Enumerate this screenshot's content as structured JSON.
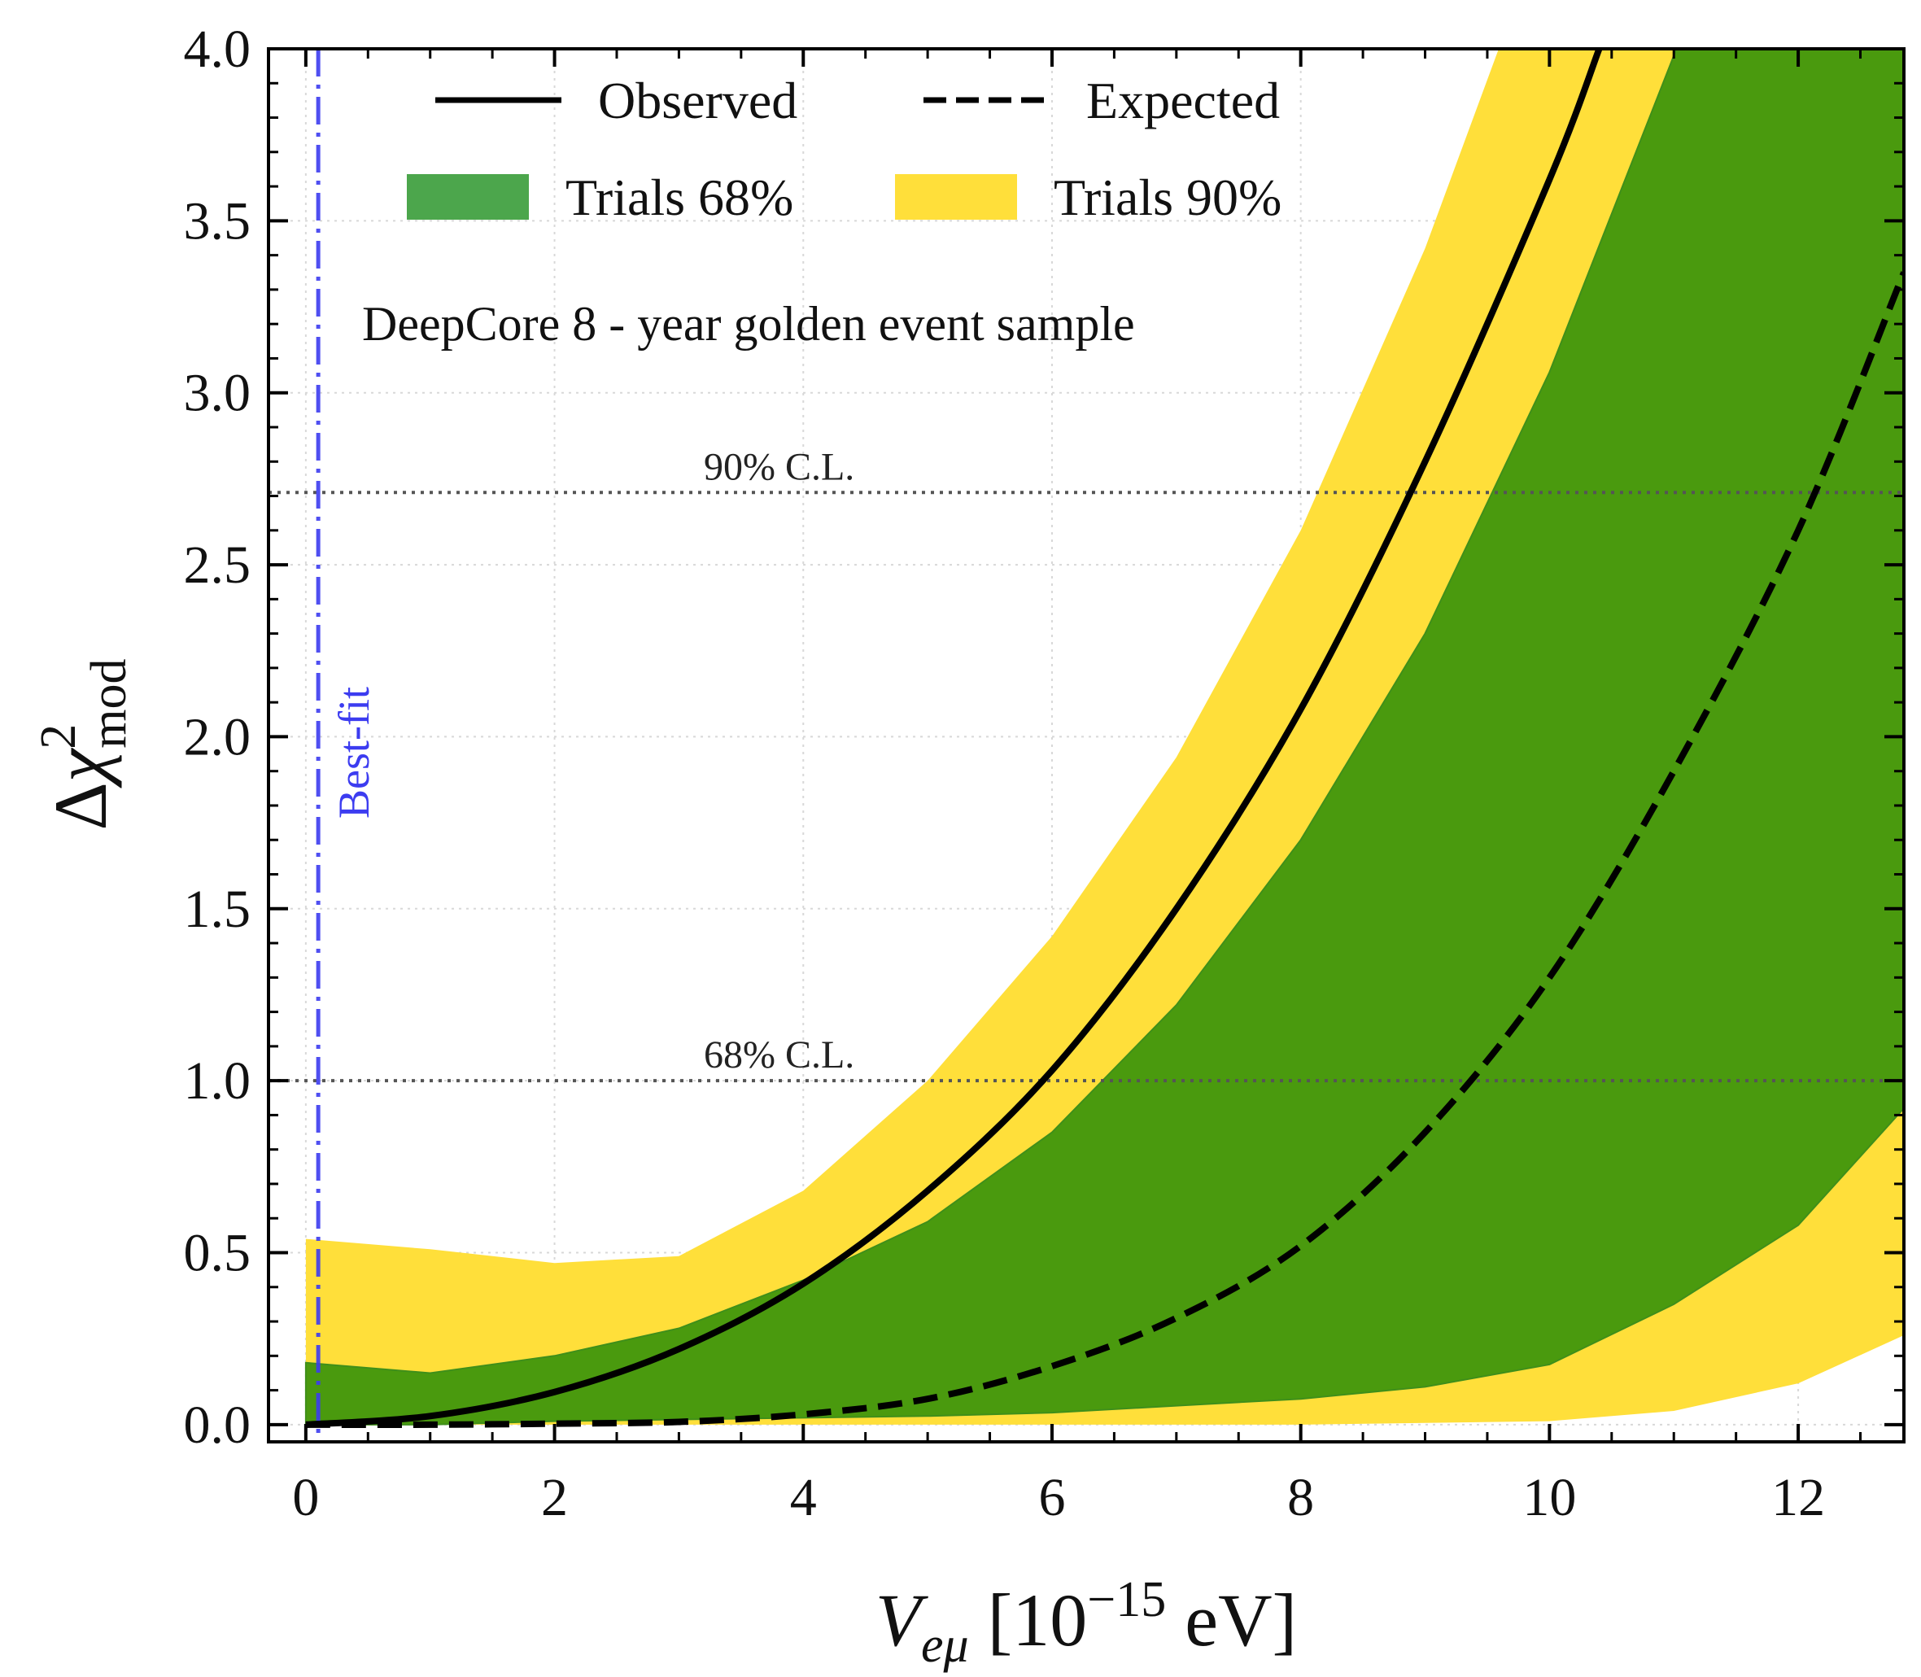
{
  "chart_data": {
    "type": "line",
    "xlabel": "V_{eμ} [10^{−15} eV]",
    "xlabel_parts": {
      "symbol": "V",
      "subscript": "eμ",
      "pre": " [10",
      "exponent": "−15",
      "post": " eV]"
    },
    "ylabel": "Δχ²_mod",
    "ylabel_parts": {
      "delta": "Δ",
      "chi": "χ",
      "exponent": "2",
      "subscript": "mod"
    },
    "xlim": [
      -0.3,
      12.85
    ],
    "ylim": [
      -0.05,
      4.0
    ],
    "xticks": [
      0,
      2,
      4,
      6,
      8,
      10,
      12
    ],
    "xtick_labels": [
      "0",
      "2",
      "4",
      "6",
      "8",
      "10",
      "12"
    ],
    "yticks": [
      0.0,
      0.5,
      1.0,
      1.5,
      2.0,
      2.5,
      3.0,
      3.5,
      4.0
    ],
    "ytick_labels": [
      "0.0",
      "0.5",
      "1.0",
      "1.5",
      "2.0",
      "2.5",
      "3.0",
      "3.5",
      "4.0"
    ],
    "grid": true,
    "legend_placement": "top-center",
    "legend": [
      {
        "label": "Observed",
        "style": "solid-line",
        "color": "#000000"
      },
      {
        "label": "Expected",
        "style": "dashed-line",
        "color": "#000000"
      },
      {
        "label": "Trials 68%",
        "style": "patch",
        "color": "#4ca64c"
      },
      {
        "label": "Trials 90%",
        "style": "patch",
        "color": "#ffdf3a"
      }
    ],
    "annotation": "DeepCore 8 - year golden event sample",
    "series": [
      {
        "name": "Observed",
        "style": "solid",
        "color": "#000000",
        "x": [
          0,
          1,
          2,
          3,
          4,
          5,
          6,
          7,
          8,
          9,
          10,
          10.4
        ],
        "y": [
          0.0,
          0.025,
          0.095,
          0.22,
          0.41,
          0.68,
          1.03,
          1.5,
          2.08,
          2.8,
          3.62,
          4.0
        ]
      },
      {
        "name": "Expected",
        "style": "dashed",
        "color": "#000000",
        "x": [
          0,
          1,
          2,
          3,
          4,
          5,
          6,
          7,
          8,
          9,
          10,
          11,
          12,
          12.85
        ],
        "y": [
          0.0,
          0.0,
          0.003,
          0.008,
          0.03,
          0.075,
          0.17,
          0.31,
          0.52,
          0.85,
          1.3,
          1.9,
          2.6,
          3.35
        ]
      }
    ],
    "bands": [
      {
        "name": "Trials 90%",
        "color": "#ffdf3a",
        "x": [
          0,
          1,
          2,
          3,
          4,
          5,
          6,
          7,
          8,
          9,
          10,
          11,
          12,
          12.85
        ],
        "lower": [
          0.0,
          0.0,
          0.0,
          0.0,
          0.0,
          0.0,
          0.0,
          0.0,
          0.0,
          0.005,
          0.01,
          0.04,
          0.12,
          0.26
        ],
        "upper": [
          0.54,
          0.51,
          0.47,
          0.49,
          0.68,
          1.0,
          1.42,
          1.94,
          2.6,
          3.42,
          4.4,
          5.5,
          6.8,
          8.0
        ]
      },
      {
        "name": "Trials 68%",
        "color": "#4a9a0e",
        "x": [
          0,
          1,
          2,
          3,
          4,
          5,
          6,
          7,
          8,
          9,
          10,
          11,
          12,
          12.85
        ],
        "lower": [
          0.0,
          0.0,
          0.01,
          0.015,
          0.02,
          0.025,
          0.035,
          0.055,
          0.075,
          0.11,
          0.175,
          0.35,
          0.58,
          0.92
        ],
        "upper": [
          0.18,
          0.15,
          0.2,
          0.28,
          0.42,
          0.59,
          0.85,
          1.22,
          1.7,
          2.3,
          3.06,
          3.98,
          5.0,
          6.0
        ]
      }
    ],
    "reference_lines": [
      {
        "y": 2.71,
        "label": "90% C.L.",
        "label_x": 3.2
      },
      {
        "y": 1.0,
        "label": "68% C.L.",
        "label_x": 3.2
      }
    ],
    "vertical_line": {
      "x": 0.1,
      "label": "Best-fit",
      "color": "#3c3cf0",
      "style": "dashdot"
    }
  }
}
